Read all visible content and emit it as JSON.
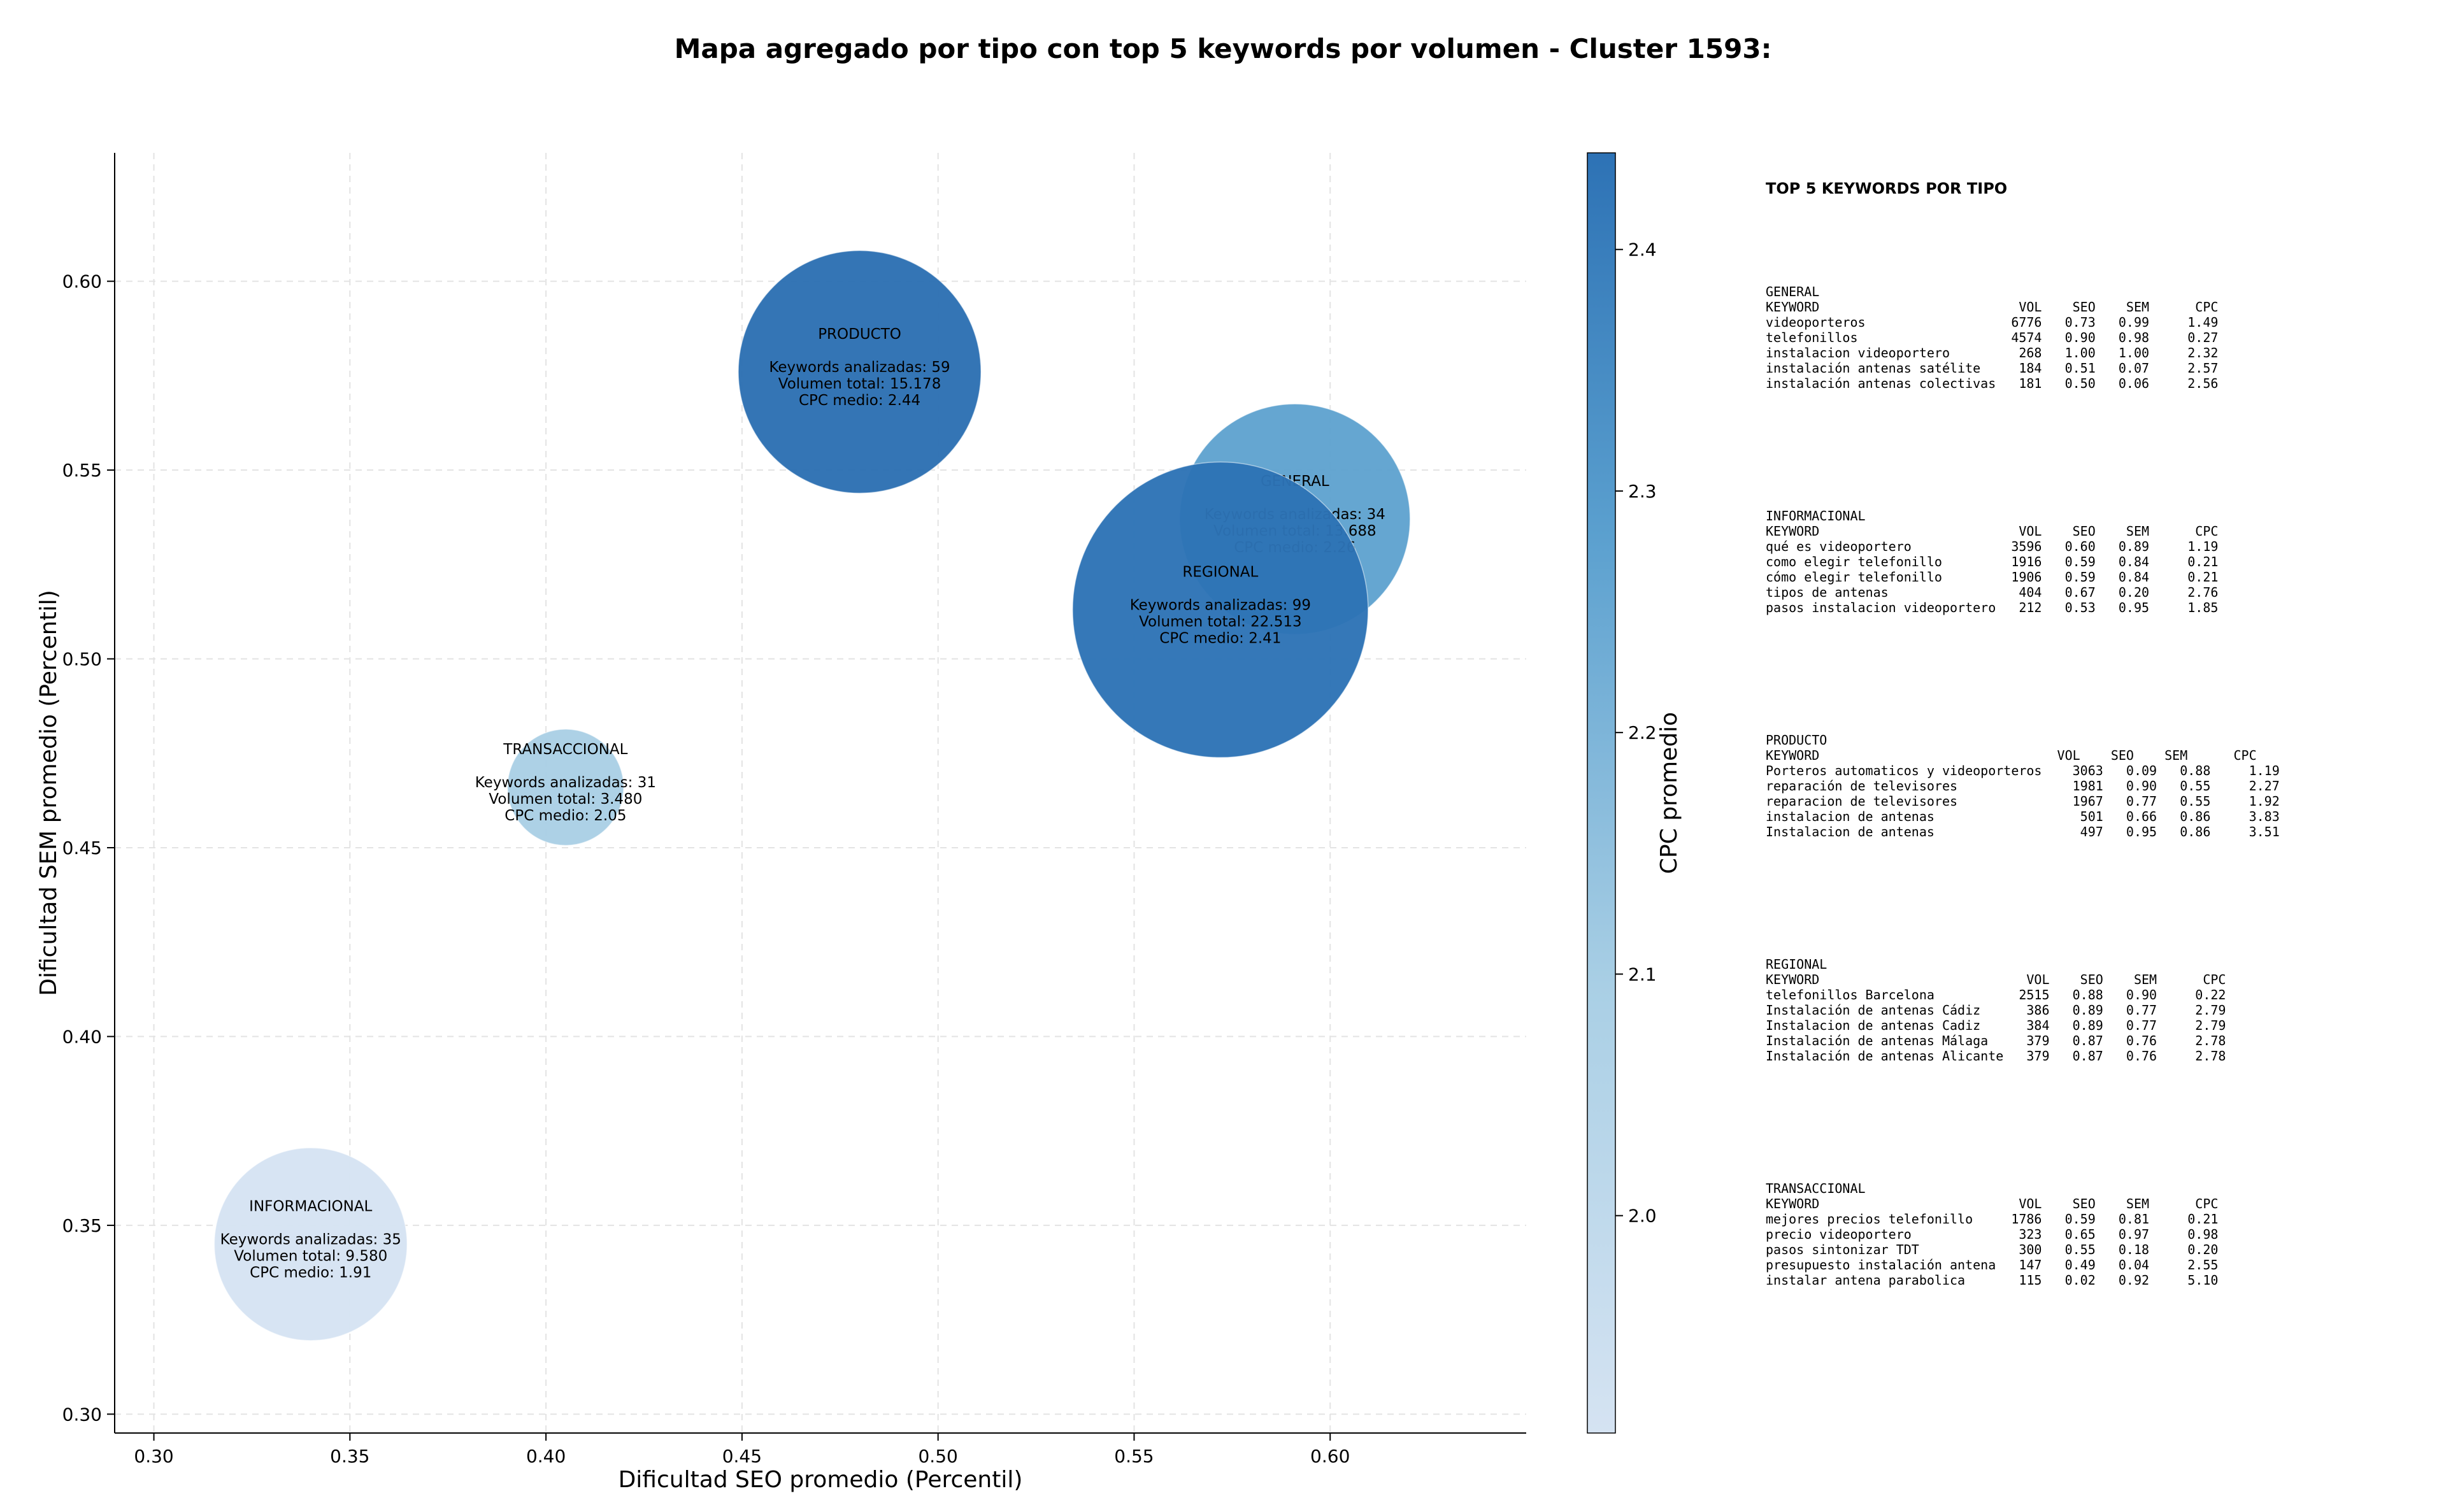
{
  "chart_data": {
    "type": "scatter",
    "title": "Mapa agregado por tipo con top 5 keywords por volumen - Cluster 1593:",
    "xlabel": "Dificultad SEO promedio (Percentil)",
    "ylabel": "Dificultad SEM promedio (Percentil)",
    "xlim": [
      0.29,
      0.65
    ],
    "ylim": [
      0.295,
      0.634
    ],
    "xticks": [
      "0.30",
      "0.35",
      "0.40",
      "0.45",
      "0.50",
      "0.55",
      "0.60"
    ],
    "yticks": [
      "0.30",
      "0.35",
      "0.40",
      "0.45",
      "0.50",
      "0.55",
      "0.60"
    ],
    "grid": true,
    "colorbar": {
      "label": "CPC promedio",
      "min": 1.91,
      "max": 2.44,
      "ticks": [
        "2.0",
        "2.1",
        "2.2",
        "2.3",
        "2.4"
      ]
    },
    "points": [
      {
        "name": "INFORMACIONAL",
        "x": 0.34,
        "y": 0.345,
        "keywords_label": "Keywords analizadas: 35",
        "volume_label": "Volumen total: 9.580",
        "cpc_label": "CPC medio: 1.91",
        "keywords": 35,
        "volume": 9580,
        "cpc": 1.91,
        "color": "#d5e3f2"
      },
      {
        "name": "TRANSACCIONAL",
        "x": 0.405,
        "y": 0.466,
        "keywords_label": "Keywords analizadas: 31",
        "volume_label": "Volumen total: 3.480",
        "cpc_label": "CPC medio: 2.05",
        "keywords": 31,
        "volume": 3480,
        "cpc": 2.05,
        "color": "#aacfe5"
      },
      {
        "name": "PRODUCTO",
        "x": 0.48,
        "y": 0.576,
        "keywords_label": "Keywords analizadas: 59",
        "volume_label": "Volumen total: 15.178",
        "cpc_label": "CPC medio: 2.44",
        "keywords": 59,
        "volume": 15178,
        "cpc": 2.44,
        "color": "#2c6fb2"
      },
      {
        "name": "GENERAL",
        "x": 0.591,
        "y": 0.537,
        "keywords_label": "Keywords analizadas: 34",
        "volume_label": "Volumen total: 13.688",
        "cpc_label": "CPC medio: 2.26",
        "keywords": 34,
        "volume": 13688,
        "cpc": 2.26,
        "color": "#5fa2cf"
      },
      {
        "name": "REGIONAL",
        "x": 0.572,
        "y": 0.513,
        "keywords_label": "Keywords analizadas: 99",
        "volume_label": "Volumen total: 22.513",
        "cpc_label": "CPC medio: 2.41",
        "keywords": 99,
        "volume": 22513,
        "cpc": 2.41,
        "color": "#2d72b5"
      }
    ]
  },
  "panel": {
    "title": "TOP 5 KEYWORDS POR TIPO",
    "groups": [
      {
        "type": "GENERAL",
        "header": "KEYWORD                          VOL    SEO    SEM      CPC",
        "rows": [
          "videoporteros                   6776   0.73   0.99     1.49",
          "telefonillos                    4574   0.90   0.98     0.27",
          "instalacion videoportero         268   1.00   1.00     2.32",
          "instalación antenas satélite     184   0.51   0.07     2.57",
          "instalación antenas colectivas   181   0.50   0.06     2.56"
        ]
      },
      {
        "type": "INFORMACIONAL",
        "header": "KEYWORD                          VOL    SEO    SEM      CPC",
        "rows": [
          "qué es videoportero             3596   0.60   0.89     1.19",
          "como elegir telefonillo         1916   0.59   0.84     0.21",
          "cómo elegir telefonillo         1906   0.59   0.84     0.21",
          "tipos de antenas                 404   0.67   0.20     2.76",
          "pasos instalacion videoportero   212   0.53   0.95     1.85"
        ]
      },
      {
        "type": "PRODUCTO",
        "header": "KEYWORD                               VOL    SEO    SEM      CPC",
        "rows": [
          "Porteros automaticos y videoporteros    3063   0.09   0.88     1.19",
          "reparación de televisores               1981   0.90   0.55     2.27",
          "reparacion de televisores               1967   0.77   0.55     1.92",
          "instalacion de antenas                   501   0.66   0.86     3.83",
          "Instalacion de antenas                   497   0.95   0.86     3.51"
        ]
      },
      {
        "type": "REGIONAL",
        "header": "KEYWORD                           VOL    SEO    SEM      CPC",
        "rows": [
          "telefonillos Barcelona           2515   0.88   0.90     0.22",
          "Instalación de antenas Cádiz      386   0.89   0.77     2.79",
          "Instalacion de antenas Cadiz      384   0.89   0.77     2.79",
          "Instalación de antenas Málaga     379   0.87   0.76     2.78",
          "Instalación de antenas Alicante   379   0.87   0.76     2.78"
        ]
      },
      {
        "type": "TRANSACCIONAL",
        "header": "KEYWORD                          VOL    SEO    SEM      CPC",
        "rows": [
          "mejores precios telefonillo     1786   0.59   0.81     0.21",
          "precio videoportero              323   0.65   0.97     0.98",
          "pasos sintonizar TDT             300   0.55   0.18     0.20",
          "presupuesto instalación antena   147   0.49   0.04     2.55",
          "instalar antena parabolica       115   0.02   0.92     5.10"
        ]
      }
    ]
  }
}
